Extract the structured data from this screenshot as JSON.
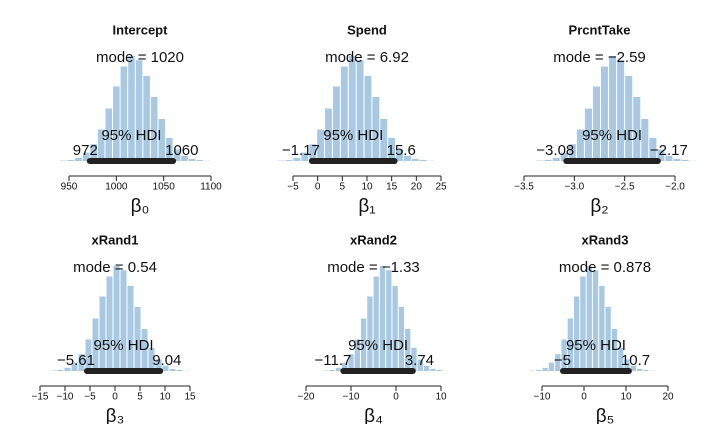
{
  "chart_data": [
    {
      "type": "histogram",
      "title": "Intercept",
      "xlabel": "β₀",
      "mode_label": "mode = 1020",
      "hdi_label": "95% HDI",
      "hdi": [
        972,
        1060
      ],
      "color": "#a9c9e2",
      "bins": [
        940,
        948,
        956,
        964,
        972,
        980,
        988,
        996,
        1004,
        1012,
        1020,
        1028,
        1036,
        1044,
        1052,
        1060,
        1068,
        1076,
        1084,
        1092,
        1100
      ],
      "values": [
        0.4,
        1,
        3,
        8,
        16,
        30,
        50,
        71,
        90,
        100,
        96,
        81,
        61,
        40,
        22,
        11,
        5,
        2,
        1,
        0.2
      ],
      "xlim": [
        950,
        1100
      ],
      "xticks": [
        950,
        1000,
        1050,
        1100
      ]
    },
    {
      "type": "histogram",
      "title": "Spend",
      "xlabel": "β₁",
      "mode_label": "mode = 6.92",
      "hdi_label": "95% HDI",
      "hdi": [
        {
          "value": -1.17,
          "label": "−1.17"
        },
        15.6
      ],
      "color": "#a9c9e2",
      "bins": [
        -8.2,
        -6.6,
        -5,
        -3.4,
        -1.8,
        -0.2,
        1.4,
        3,
        4.6,
        6.2,
        7.8,
        9.4,
        11,
        12.6,
        14.2,
        15.8,
        17.4,
        19,
        20.6,
        22.2,
        23.8
      ],
      "values": [
        0.4,
        1,
        3,
        8,
        16,
        30,
        50,
        71,
        90,
        100,
        96,
        81,
        61,
        40,
        22,
        11,
        5,
        2,
        1,
        0.2
      ],
      "xlim": [
        -5,
        25
      ],
      "xticks": [
        {
          "value": -5,
          "label": "−5"
        },
        0,
        5,
        10,
        15,
        20,
        25
      ]
    },
    {
      "type": "histogram",
      "title": "PrcntTake",
      "xlabel": "β₂",
      "mode_label": "mode = −2.59",
      "hdi_label": "95% HDI",
      "hdi": [
        {
          "value": -3.08,
          "label": "−3.08"
        },
        {
          "value": -2.17,
          "label": "−2.17"
        }
      ],
      "color": "#a9c9e2",
      "bins": [
        -3.38,
        -3.3,
        -3.22,
        -3.14,
        -3.06,
        -2.98,
        -2.9,
        -2.82,
        -2.74,
        -2.66,
        -2.58,
        -2.5,
        -2.42,
        -2.34,
        -2.26,
        -2.18,
        -2.1,
        -2.02,
        -1.94,
        -1.86,
        -1.78
      ],
      "values": [
        0.4,
        1,
        3,
        8,
        16,
        30,
        50,
        71,
        90,
        100,
        96,
        81,
        61,
        40,
        22,
        11,
        5,
        2,
        1,
        0.2
      ],
      "xlim": [
        -3.5,
        -2.0
      ],
      "xticks": [
        {
          "value": -3.5,
          "label": "−3.5"
        },
        {
          "value": -3.0,
          "label": "−3.0"
        },
        {
          "value": -2.5,
          "label": "−2.5"
        },
        {
          "value": -2.0,
          "label": "−2.0"
        }
      ]
    },
    {
      "type": "histogram",
      "title": "xRand1",
      "xlabel": "β₃",
      "mode_label": "mode = 0.54",
      "hdi_label": "95% HDI",
      "hdi": [
        {
          "value": -5.61,
          "label": "−5.61"
        },
        9.04
      ],
      "color": "#a9c9e2",
      "bins": [
        -13,
        -11.6,
        -10.2,
        -8.8,
        -7.4,
        -6,
        -4.6,
        -3.2,
        -1.8,
        -0.4,
        1,
        2.4,
        3.8,
        5.2,
        6.6,
        8,
        9.4,
        10.8,
        12.2,
        13.6,
        15
      ],
      "values": [
        0.4,
        1,
        3,
        8,
        16,
        30,
        50,
        71,
        90,
        100,
        96,
        81,
        61,
        40,
        22,
        11,
        5,
        2,
        1,
        0.2
      ],
      "xlim": [
        -15,
        15
      ],
      "xticks": [
        {
          "value": -15,
          "label": "−15"
        },
        {
          "value": -10,
          "label": "−10"
        },
        {
          "value": -5,
          "label": "−5"
        },
        0,
        5,
        10,
        15
      ]
    },
    {
      "type": "histogram",
      "title": "xRand2",
      "xlabel": "β₄",
      "mode_label": "mode = −1.33",
      "hdi_label": "95% HDI",
      "hdi": [
        {
          "value": -11.7,
          "label": "−11.7"
        },
        3.74
      ],
      "color": "#a9c9e2",
      "bins": [
        -16.3,
        -14.9,
        -13.5,
        -12.1,
        -10.7,
        -9.3,
        -7.9,
        -6.5,
        -5.1,
        -3.7,
        -2.3,
        -0.9,
        0.5,
        1.9,
        3.3,
        4.7,
        6.1,
        7.5,
        8.9,
        10.3,
        11.7
      ],
      "values": [
        0.4,
        1,
        3,
        8,
        16,
        30,
        50,
        71,
        90,
        100,
        96,
        81,
        61,
        40,
        22,
        11,
        5,
        2,
        1,
        0.2
      ],
      "xlim": [
        -20,
        10
      ],
      "xticks": [
        {
          "value": -20,
          "label": "−20"
        },
        {
          "value": -10,
          "label": "−10"
        },
        0,
        10
      ]
    },
    {
      "type": "histogram",
      "title": "xRand3",
      "xlabel": "β₅",
      "mode_label": "mode = 0.878",
      "hdi_label": "95% HDI",
      "hdi": [
        {
          "value": -5,
          "label": "−5"
        },
        10.7
      ],
      "color": "#a9c9e2",
      "bins": [
        -13,
        -11.5,
        -10,
        -8.5,
        -7,
        -5.5,
        -4,
        -2.5,
        -1,
        0.5,
        2,
        3.5,
        5,
        6.5,
        8,
        9.5,
        11,
        12.5,
        14,
        15.5,
        17
      ],
      "values": [
        0.4,
        1,
        3,
        8,
        16,
        30,
        50,
        71,
        90,
        100,
        96,
        81,
        61,
        40,
        22,
        11,
        5,
        2,
        1,
        0.2
      ],
      "xlim": [
        -10,
        20
      ],
      "xticks": [
        {
          "value": -10,
          "label": "−10"
        },
        0,
        10,
        20
      ]
    }
  ]
}
